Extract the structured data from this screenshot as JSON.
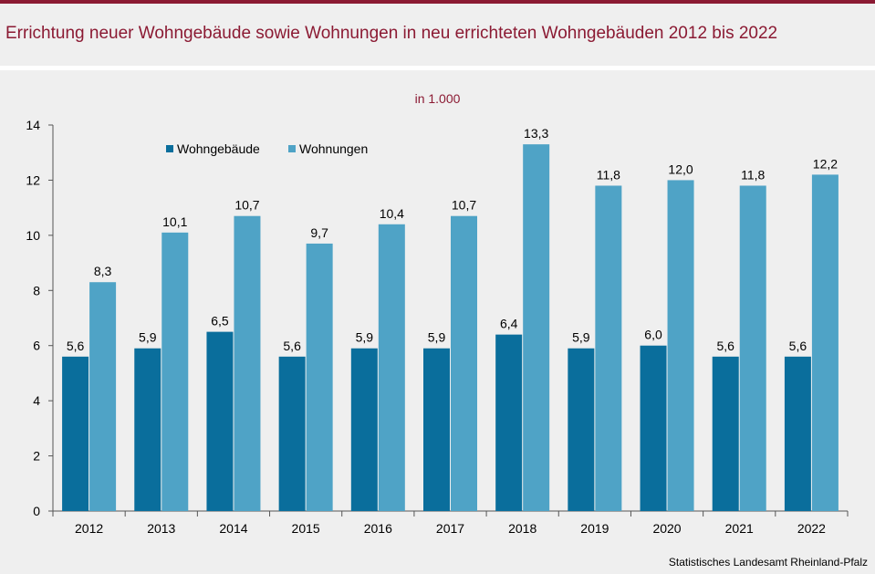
{
  "header": {
    "title": "Errichtung neuer Wohngebäude sowie Wohnungen in neu errichteten Wohngebäuden 2012 bis 2022"
  },
  "colors": {
    "accent": "#8b1a33",
    "series_dark": "#0a6e9c",
    "series_light": "#4fa3c6",
    "background": "#efefef"
  },
  "chart_data": {
    "type": "bar",
    "title": "",
    "subtitle": "in 1.000",
    "xlabel": "",
    "ylabel": "",
    "ylim": [
      0,
      14
    ],
    "yticks": [
      "0",
      "2",
      "4",
      "6",
      "8",
      "10",
      "12",
      "14"
    ],
    "grid": false,
    "legend_position": "top-left",
    "categories": [
      "2012",
      "2013",
      "2014",
      "2015",
      "2016",
      "2017",
      "2018",
      "2019",
      "2020",
      "2021",
      "2022"
    ],
    "series": [
      {
        "name": "Wohngebäude",
        "color": "#0a6e9c",
        "values": [
          5.6,
          5.9,
          6.5,
          5.6,
          5.9,
          5.9,
          6.4,
          5.9,
          6.0,
          5.6,
          5.6
        ],
        "labels": [
          "5,6",
          "5,9",
          "6,5",
          "5,6",
          "5,9",
          "5,9",
          "6,4",
          "5,9",
          "6,0",
          "5,6",
          "5,6"
        ]
      },
      {
        "name": "Wohnungen",
        "color": "#4fa3c6",
        "values": [
          8.3,
          10.1,
          10.7,
          9.7,
          10.4,
          10.7,
          13.3,
          11.8,
          12.0,
          11.8,
          12.2
        ],
        "labels": [
          "8,3",
          "10,1",
          "10,7",
          "9,7",
          "10,4",
          "10,7",
          "13,3",
          "11,8",
          "12,0",
          "11,8",
          "12,2"
        ]
      }
    ]
  },
  "footer": {
    "source": "Statistisches Landesamt  Rheinland-Pfalz"
  }
}
